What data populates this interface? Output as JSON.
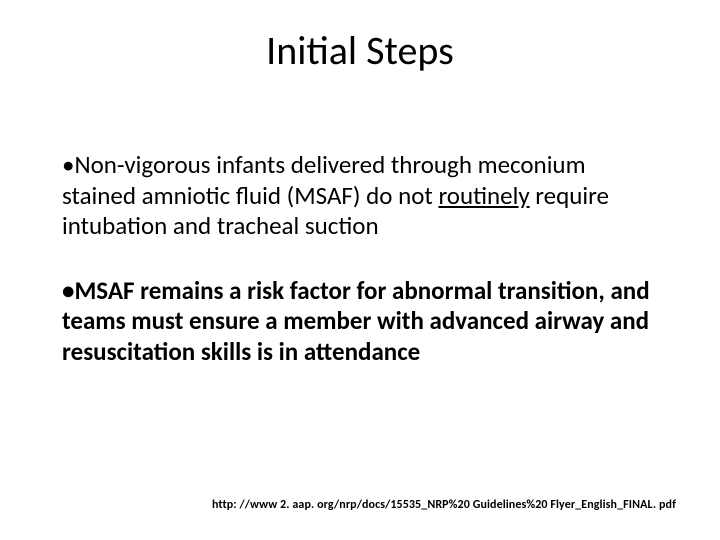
{
  "slide": {
    "title": "Initial Steps",
    "bullets": [
      {
        "prefix": "•",
        "seg1": "Non-vigorous infants delivered through meconium stained amniotic fluid (MSAF) do not ",
        "underlined": "routinely",
        "seg2": " require intubation and tracheal suction"
      },
      {
        "prefix": "•",
        "seg1": "MSAF remains a risk factor for abnormal transition, and teams must ensure a member with advanced airway and resuscitation skills is in attendance",
        "underlined": "",
        "seg2": ""
      }
    ],
    "footer": "http: //www 2. aap. org/nrp/docs/15535_NRP%20 Guidelines%20 Flyer_English_FINAL. pdf"
  },
  "style": {
    "background_color": "#ffffff",
    "text_color": "#000000",
    "title_fontsize": 40,
    "body_fontsize": 25,
    "footer_fontsize": 12
  }
}
